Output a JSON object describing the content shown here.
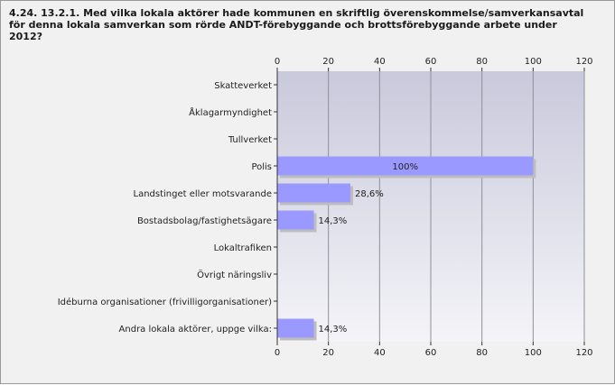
{
  "chart_data": {
    "type": "bar",
    "orientation": "horizontal",
    "title": "4.24. 13.2.1. Med vilka lokala aktörer hade kommunen en skriftlig överenskommelse/samverkansavtal för denna lokala samverkan som rörde ANDT-förebyggande och brottsförebyggande arbete under 2012?",
    "categories": [
      "Skatteverket",
      "Åklagarmyndighet",
      "Tullverket",
      "Polis",
      "Landstinget eller motsvarande",
      "Bostadsbolag/fastighetsägare",
      "Lokaltrafiken",
      "Övrigt näringsliv",
      "Idéburna organisationer (frivilligorganisationer)",
      "Andra lokala aktörer, uppge vilka:"
    ],
    "values": [
      0,
      0,
      0,
      100,
      28.6,
      14.3,
      0,
      0,
      0,
      14.3
    ],
    "data_labels": [
      "",
      "",
      "",
      "100%",
      "28,6%",
      "14,3%",
      "",
      "",
      "",
      "14,3%"
    ],
    "xlim": [
      0,
      120
    ],
    "xticks": [
      "0",
      "20",
      "40",
      "60",
      "80",
      "100",
      "120"
    ],
    "axis_position": "top-and-bottom",
    "grid": true,
    "colors": {
      "bar": "#9999ff",
      "bar_shadow": "#bdbdbd",
      "plot_bg_top": "#c9c9dc",
      "plot_bg_bottom": "#f4f4f8",
      "grid": "#8f8f9a"
    }
  }
}
